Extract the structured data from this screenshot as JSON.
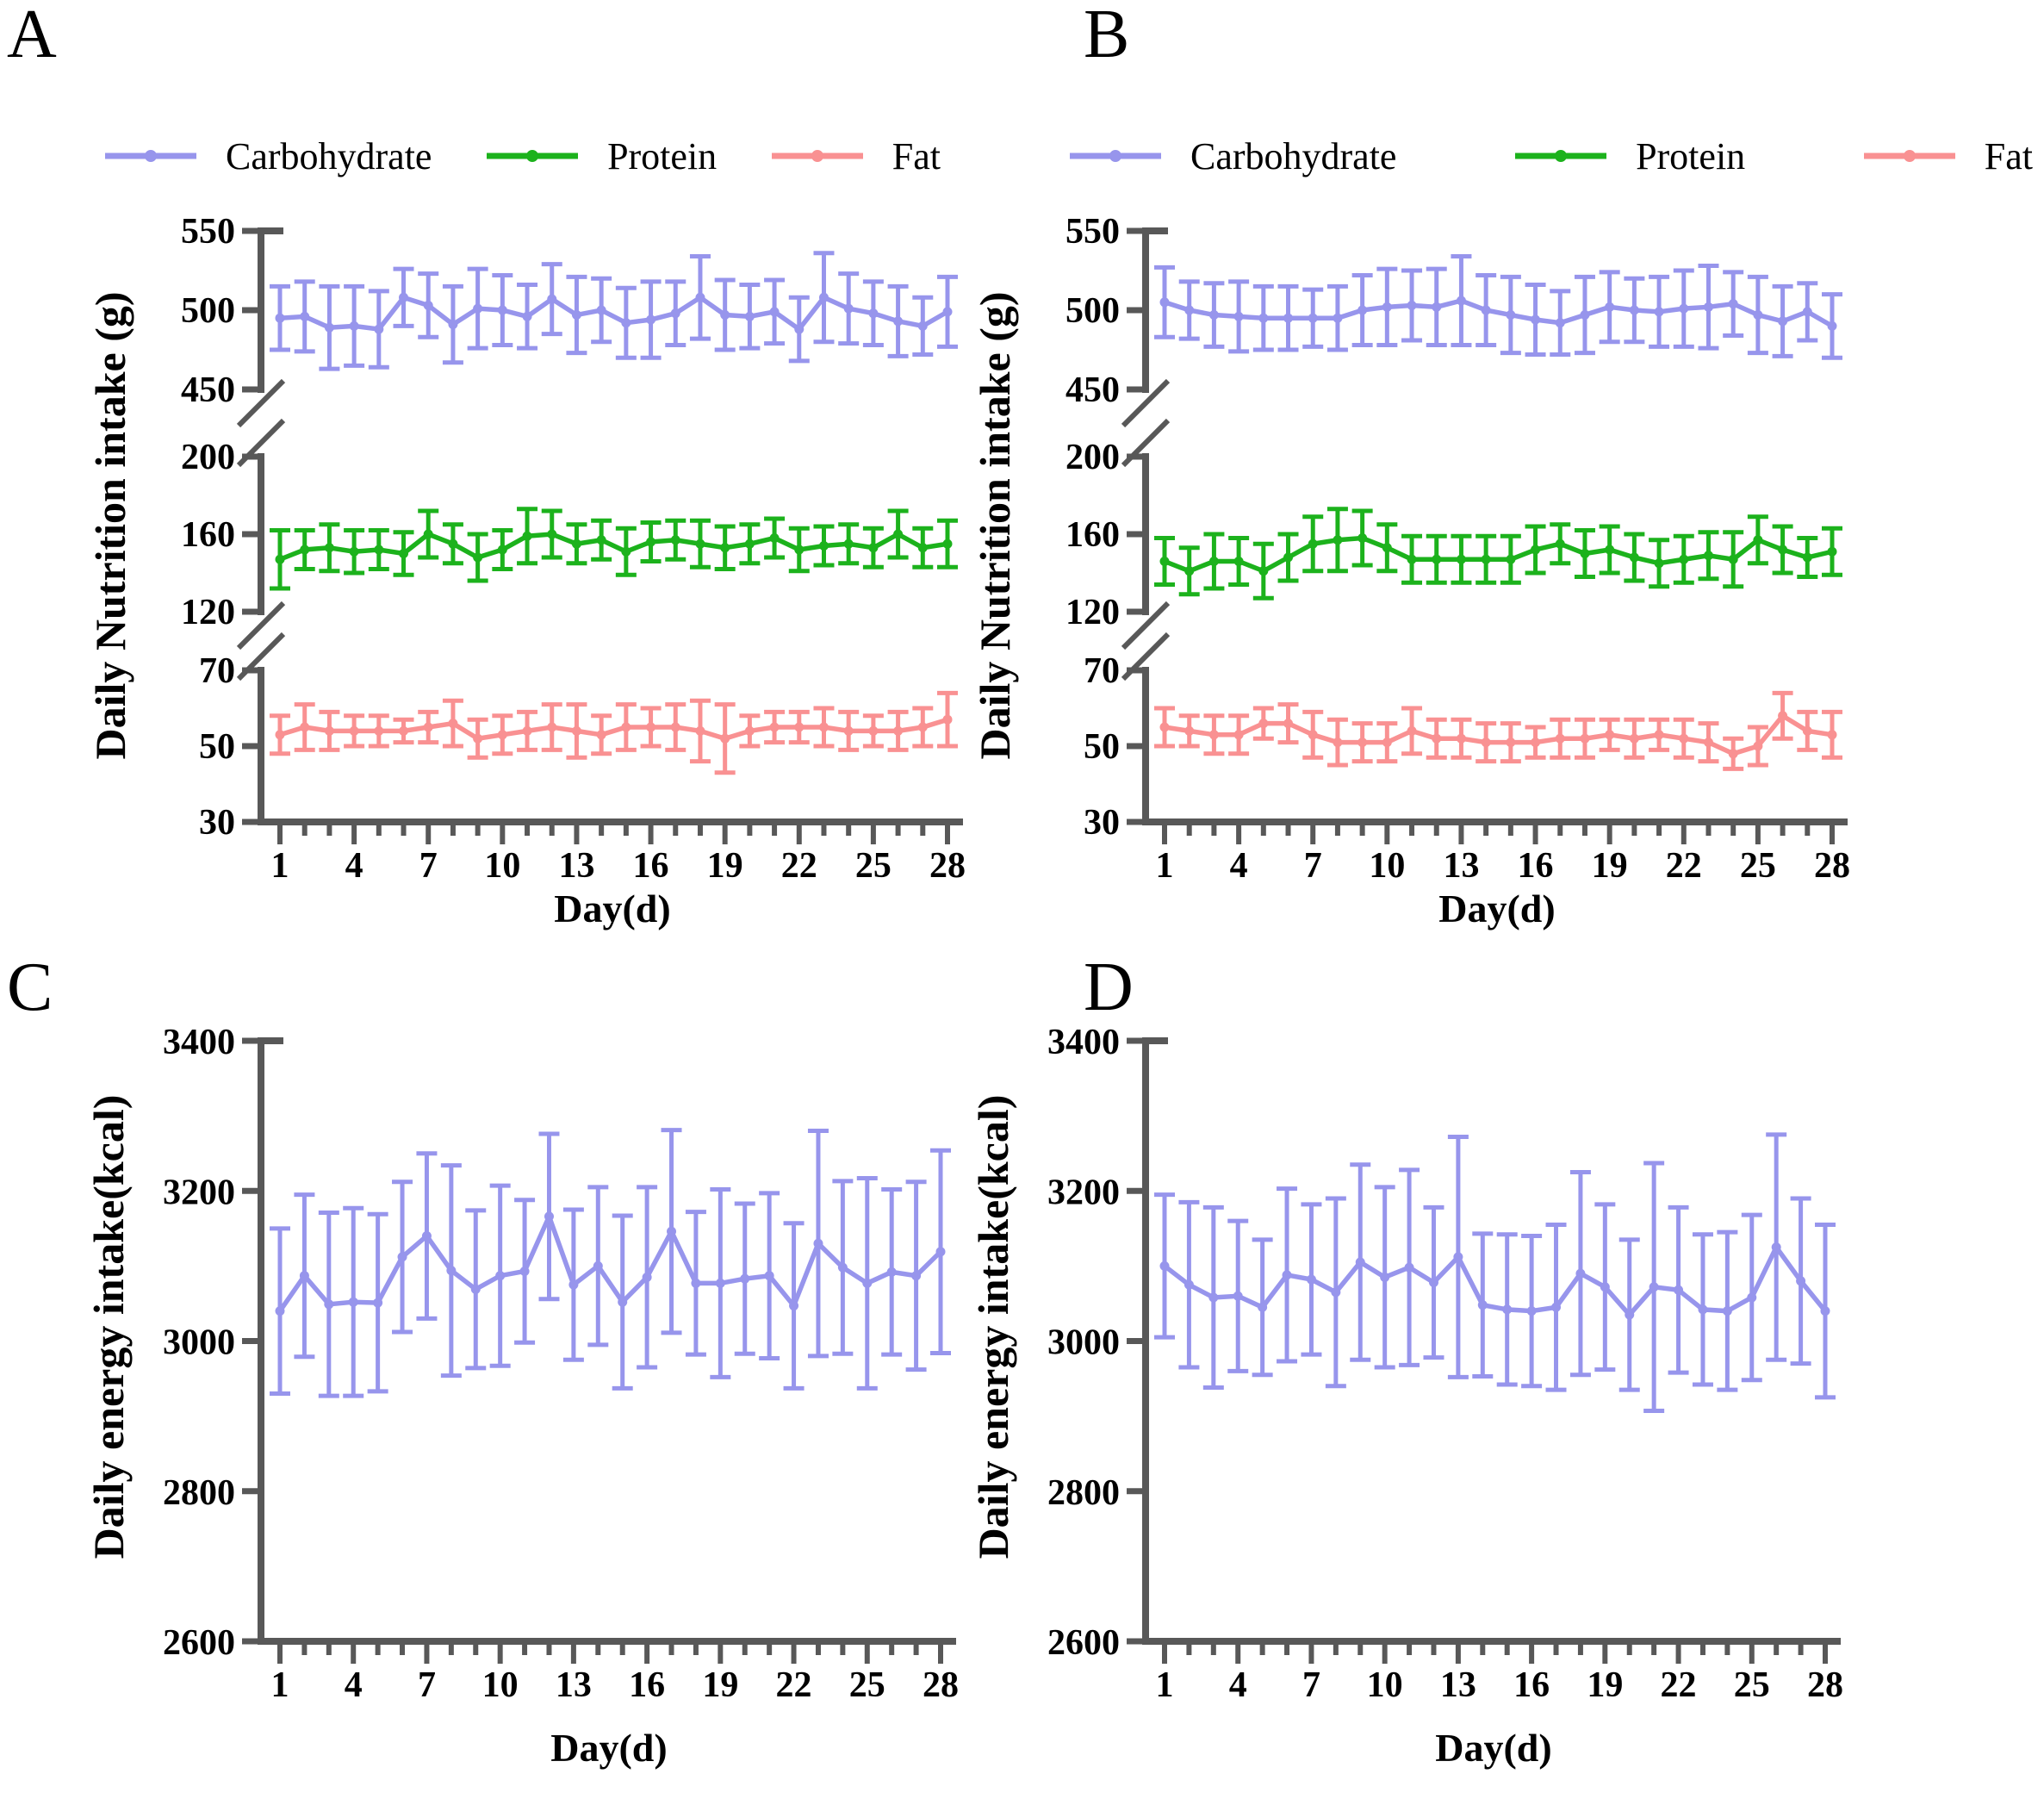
{
  "figure": {
    "panels": [
      {
        "letter": "A"
      },
      {
        "letter": "B"
      },
      {
        "letter": "C"
      },
      {
        "letter": "D"
      }
    ]
  },
  "colors": {
    "carbohydrate": "#9795ec",
    "protein": "#1cb21c",
    "fat": "#f99192",
    "axis": "#585858"
  },
  "chart_data": [
    {
      "type": "line",
      "panel": "A",
      "layout": "broken-y",
      "x_label": "Day(d)",
      "y_label": "Daily Nutrition intake (g)",
      "x_start": 1,
      "x_end": 28,
      "x_tick_labels": [
        1,
        4,
        7,
        10,
        13,
        16,
        19,
        22,
        25,
        28
      ],
      "legend_position": "top",
      "grid": false,
      "error_bars": true,
      "segments": [
        {
          "ylim": [
            450,
            550
          ],
          "ticks": [
            550,
            500,
            450
          ]
        },
        {
          "ylim": [
            120,
            200
          ],
          "ticks": [
            200,
            160,
            120
          ]
        },
        {
          "ylim": [
            30,
            70
          ],
          "ticks": [
            70,
            50,
            30
          ]
        }
      ],
      "series": [
        {
          "name": "Carbohydrate",
          "color": "#9795ec",
          "segment": 0,
          "values": [
            495,
            496,
            489,
            490,
            488,
            508,
            503,
            491,
            501,
            500,
            496,
            507,
            497,
            500,
            492,
            494,
            498,
            508,
            497,
            496,
            499,
            488,
            508,
            501,
            498,
            493,
            490,
            499
          ],
          "errors": [
            20,
            22,
            26,
            25,
            24,
            18,
            20,
            24,
            25,
            22,
            20,
            22,
            24,
            20,
            22,
            24,
            20,
            26,
            22,
            20,
            20,
            20,
            28,
            22,
            20,
            22,
            18,
            22
          ]
        },
        {
          "name": "Protein",
          "color": "#1cb21c",
          "segment": 1,
          "values": [
            147,
            152,
            153,
            151,
            152,
            150,
            160,
            155,
            148,
            152,
            159,
            160,
            155,
            157,
            151,
            156,
            157,
            155,
            153,
            155,
            158,
            152,
            154,
            155,
            153,
            160,
            153,
            155
          ],
          "errors": [
            15,
            10,
            12,
            11,
            10,
            11,
            12,
            10,
            12,
            10,
            14,
            12,
            10,
            10,
            12,
            10,
            10,
            12,
            11,
            10,
            10,
            11,
            10,
            10,
            10,
            12,
            10,
            12
          ]
        },
        {
          "name": "Fat",
          "color": "#f99192",
          "segment": 2,
          "values": [
            53,
            55,
            54,
            54,
            54,
            54,
            55,
            56,
            52,
            53,
            54,
            55,
            54,
            53,
            55,
            55,
            55,
            54,
            52,
            54,
            55,
            55,
            55,
            54,
            54,
            54,
            55,
            57
          ],
          "errors": [
            5,
            6,
            5,
            4,
            4,
            3,
            4,
            6,
            5,
            5,
            5,
            6,
            7,
            5,
            6,
            5,
            6,
            8,
            9,
            4,
            4,
            4,
            5,
            5,
            4,
            5,
            5,
            7
          ]
        }
      ]
    },
    {
      "type": "line",
      "panel": "B",
      "layout": "broken-y",
      "x_label": "Day(d)",
      "y_label": "Daily Nutrition intake (g)",
      "x_start": 1,
      "x_end": 28,
      "x_tick_labels": [
        1,
        4,
        7,
        10,
        13,
        16,
        19,
        22,
        25,
        28
      ],
      "legend_position": "top",
      "grid": false,
      "error_bars": true,
      "segments": [
        {
          "ylim": [
            450,
            550
          ],
          "ticks": [
            550,
            500,
            450
          ]
        },
        {
          "ylim": [
            120,
            200
          ],
          "ticks": [
            200,
            160,
            120
          ]
        },
        {
          "ylim": [
            30,
            70
          ],
          "ticks": [
            70,
            50,
            30
          ]
        }
      ],
      "series": [
        {
          "name": "Carbohydrate",
          "color": "#9795ec",
          "segment": 0,
          "values": [
            505,
            500,
            497,
            496,
            495,
            495,
            495,
            495,
            500,
            502,
            503,
            502,
            506,
            500,
            497,
            494,
            492,
            497,
            502,
            500,
            499,
            501,
            502,
            504,
            497,
            493,
            499,
            490
          ],
          "errors": [
            22,
            18,
            20,
            22,
            20,
            20,
            18,
            20,
            22,
            24,
            22,
            24,
            28,
            22,
            24,
            22,
            20,
            24,
            22,
            20,
            22,
            24,
            26,
            20,
            24,
            22,
            18,
            20
          ]
        },
        {
          "name": "Protein",
          "color": "#1cb21c",
          "segment": 1,
          "values": [
            146,
            141,
            146,
            146,
            141,
            148,
            155,
            157,
            158,
            153,
            147,
            147,
            147,
            147,
            147,
            152,
            155,
            150,
            152,
            148,
            145,
            147,
            149,
            147,
            157,
            152,
            148,
            151
          ],
          "errors": [
            12,
            12,
            14,
            12,
            14,
            12,
            14,
            16,
            14,
            12,
            12,
            12,
            12,
            12,
            12,
            12,
            10,
            12,
            12,
            12,
            12,
            12,
            12,
            14,
            12,
            12,
            10,
            12
          ]
        },
        {
          "name": "Fat",
          "color": "#f99192",
          "segment": 2,
          "values": [
            55,
            54,
            53,
            53,
            56,
            56,
            53,
            51,
            51,
            51,
            54,
            52,
            52,
            51,
            51,
            51,
            52,
            52,
            53,
            52,
            53,
            52,
            51,
            48,
            50,
            58,
            54,
            53
          ],
          "errors": [
            5,
            4,
            5,
            5,
            4,
            5,
            6,
            6,
            5,
            5,
            6,
            5,
            5,
            5,
            5,
            4,
            5,
            5,
            4,
            5,
            4,
            5,
            5,
            4,
            5,
            6,
            5,
            6
          ]
        }
      ]
    },
    {
      "type": "line",
      "panel": "C",
      "layout": "single-y",
      "x_label": "Day(d)",
      "y_label": "Daily energy intake(kcal)",
      "x_start": 1,
      "x_end": 28,
      "x_tick_labels": [
        1,
        4,
        7,
        10,
        13,
        16,
        19,
        22,
        25,
        28
      ],
      "grid": false,
      "error_bars": true,
      "ylim": [
        2600,
        3400
      ],
      "y_ticks": [
        3400,
        3200,
        3000,
        2800,
        2600
      ],
      "series": [
        {
          "color": "#9795ec",
          "values": [
            3040,
            3087,
            3049,
            3052,
            3051,
            3112,
            3140,
            3094,
            3069,
            3087,
            3093,
            3166,
            3075,
            3100,
            3052,
            3085,
            3146,
            3077,
            3077,
            3083,
            3087,
            3047,
            3130,
            3098,
            3077,
            3092,
            3087,
            3119
          ],
          "errors": [
            110,
            108,
            122,
            125,
            118,
            100,
            110,
            140,
            105,
            120,
            95,
            110,
            100,
            105,
            115,
            120,
            135,
            95,
            125,
            100,
            110,
            110,
            150,
            115,
            140,
            110,
            125,
            135
          ]
        }
      ]
    },
    {
      "type": "line",
      "panel": "D",
      "layout": "single-y",
      "x_label": "Day(d)",
      "y_label": "Daily energy intake(kcal)",
      "x_start": 1,
      "x_end": 28,
      "x_tick_labels": [
        1,
        4,
        7,
        10,
        13,
        16,
        19,
        22,
        25,
        28
      ],
      "grid": false,
      "error_bars": true,
      "ylim": [
        2600,
        3400
      ],
      "y_ticks": [
        3400,
        3200,
        3000,
        2800,
        2600
      ],
      "series": [
        {
          "color": "#9795ec",
          "values": [
            3100,
            3075,
            3058,
            3060,
            3045,
            3088,
            3082,
            3065,
            3105,
            3085,
            3098,
            3078,
            3112,
            3048,
            3042,
            3040,
            3045,
            3090,
            3072,
            3035,
            3072,
            3068,
            3042,
            3040,
            3058,
            3125,
            3080,
            3040
          ],
          "errors": [
            95,
            110,
            120,
            100,
            90,
            115,
            100,
            125,
            130,
            120,
            130,
            100,
            160,
            95,
            100,
            100,
            110,
            135,
            110,
            100,
            165,
            110,
            100,
            105,
            110,
            150,
            110,
            115
          ]
        }
      ]
    }
  ]
}
